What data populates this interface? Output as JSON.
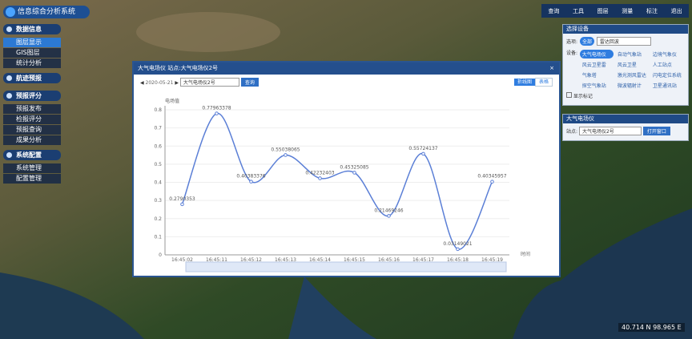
{
  "header": {
    "title": "信息综合分析系统",
    "nav": [
      "查询",
      "工具",
      "图层",
      "测量",
      "标注",
      "退出"
    ]
  },
  "sidebar": [
    {
      "title": "数据信息",
      "items": [
        "图层显示",
        "GIS图层",
        "统计分析"
      ]
    },
    {
      "title": "航迹预报",
      "items": []
    },
    {
      "title": "预报评分",
      "items": [
        "预报发布",
        "检报评分",
        "预报查询",
        "成果分析"
      ]
    },
    {
      "title": "系统配置",
      "items": [
        "系统管理",
        "配置管理"
      ]
    }
  ],
  "device_panel": {
    "title": "选择设备",
    "option_label": "选项:",
    "option_selected": "全部",
    "option_select": "雷达回波",
    "device_label": "设备:",
    "devices": [
      "大气电场仪",
      "自动气象站",
      "边境气象仪",
      "风云卫星雷",
      "风云卫星",
      "人工站点",
      "气象塔",
      "激光测风雷达",
      "闪电定位系统",
      "探空气象站",
      "微波辐射计",
      "卫星通讯站"
    ],
    "checkbox": "显示标记"
  },
  "station_panel": {
    "title": "大气电场仪",
    "label": "站点:",
    "station": "大气电场仪2号",
    "button": "打开窗口"
  },
  "modal": {
    "title": "大气电场仪 站点:大气电场仪2号",
    "date": "2020-05-21",
    "station": "大气电场仪2号",
    "query": "查询",
    "tabs": [
      "折线图",
      "表格"
    ]
  },
  "chart_data": {
    "type": "line",
    "y_label": "电场值",
    "x_label": "时间",
    "categories": [
      "16:45:02",
      "16:45:11",
      "16:45:12",
      "16:45:13",
      "16:45:14",
      "16:45:15",
      "16:45:16",
      "16:45:17",
      "16:45:18",
      "16:45:19"
    ],
    "values": [
      0.2790353,
      0.77963378,
      0.40383376,
      0.55038065,
      0.42232403,
      0.45325085,
      0.21469246,
      0.55724137,
      0.03149021,
      0.40345957
    ],
    "color": "#5b7fd6",
    "ylim": [
      0,
      0.8
    ],
    "yticks": [
      0,
      0.1,
      0.2,
      0.3,
      0.4,
      0.5,
      0.6,
      0.7,
      0.8
    ]
  },
  "coords": "40.714 N 98.965 E"
}
